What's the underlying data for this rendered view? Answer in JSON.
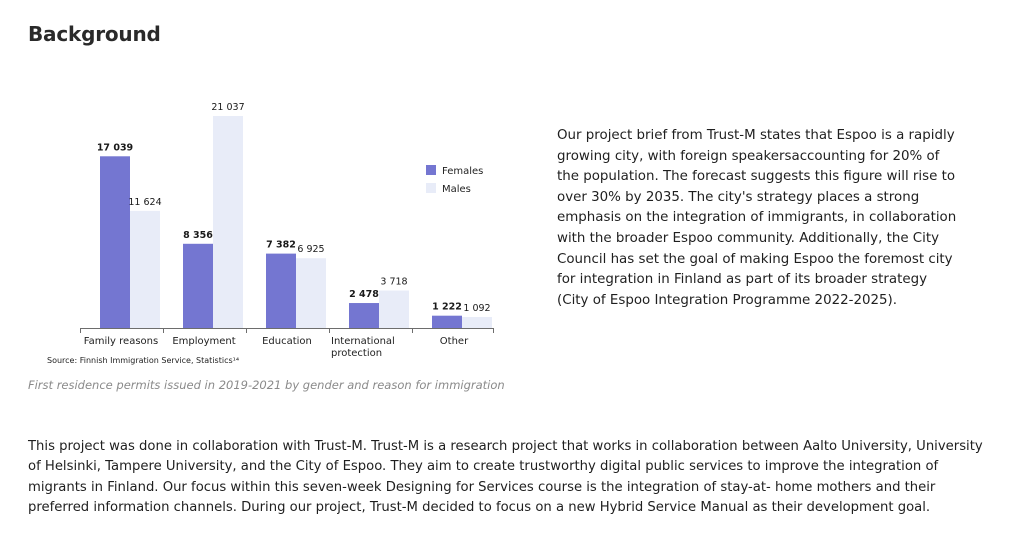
{
  "section": {
    "heading": "Background"
  },
  "chart_data": {
    "type": "bar",
    "categories": [
      "Family reasons",
      "Employment",
      "Education",
      "International protection",
      "Other"
    ],
    "category_lines": [
      [
        "Family reasons"
      ],
      [
        "Employment"
      ],
      [
        "Education"
      ],
      [
        "International",
        "protection"
      ],
      [
        "Other"
      ]
    ],
    "series": [
      {
        "name": "Females",
        "color": "#7476d1",
        "values": [
          17039,
          8356,
          7382,
          2478,
          1222
        ],
        "labels": [
          "17 039",
          "8 356",
          "7 382",
          "2 478",
          "1 222"
        ]
      },
      {
        "name": "Males",
        "color": "#e8ecf8",
        "values": [
          11624,
          21037,
          6925,
          3718,
          1092
        ],
        "labels": [
          "11 624",
          "21 037",
          "6 925",
          "3 718",
          "1 092"
        ]
      }
    ],
    "ylim": [
      0,
      21037
    ],
    "legend_position": "right",
    "grid": false,
    "source": "Source: Finnish Immigration Service, Statistics¹⁴",
    "caption": "First residence permits issued in 2019-2021 by gender and reason for immigration"
  },
  "side_text": "Our project brief from Trust-M states that Espoo is a rapidly growing city, with foreign speakersaccounting for 20% of the population. The forecast suggests this figure will rise to over 30% by 2035. The city's strategy places a strong emphasis on the integration of immigrants, in collaboration with the broader Espoo community. Additionally, the City Council has set the goal of making Espoo the foremost city for integration in Finland as part of its broader strategy (City of Espoo Integration Programme 2022-2025).",
  "body_text": "This project was done in collaboration with Trust-M. Trust-M is a research project that works in collaboration between Aalto University, University of Helsinki, Tampere University, and the City of Espoo. They aim to create trustworthy digital public services to improve the integration of migrants in Finland. Our focus within this seven-week Designing for Services course is the integration of stay-at- home mothers and their preferred information channels. During our project, Trust-M decided to focus on a new Hybrid Service Manual as their development goal."
}
